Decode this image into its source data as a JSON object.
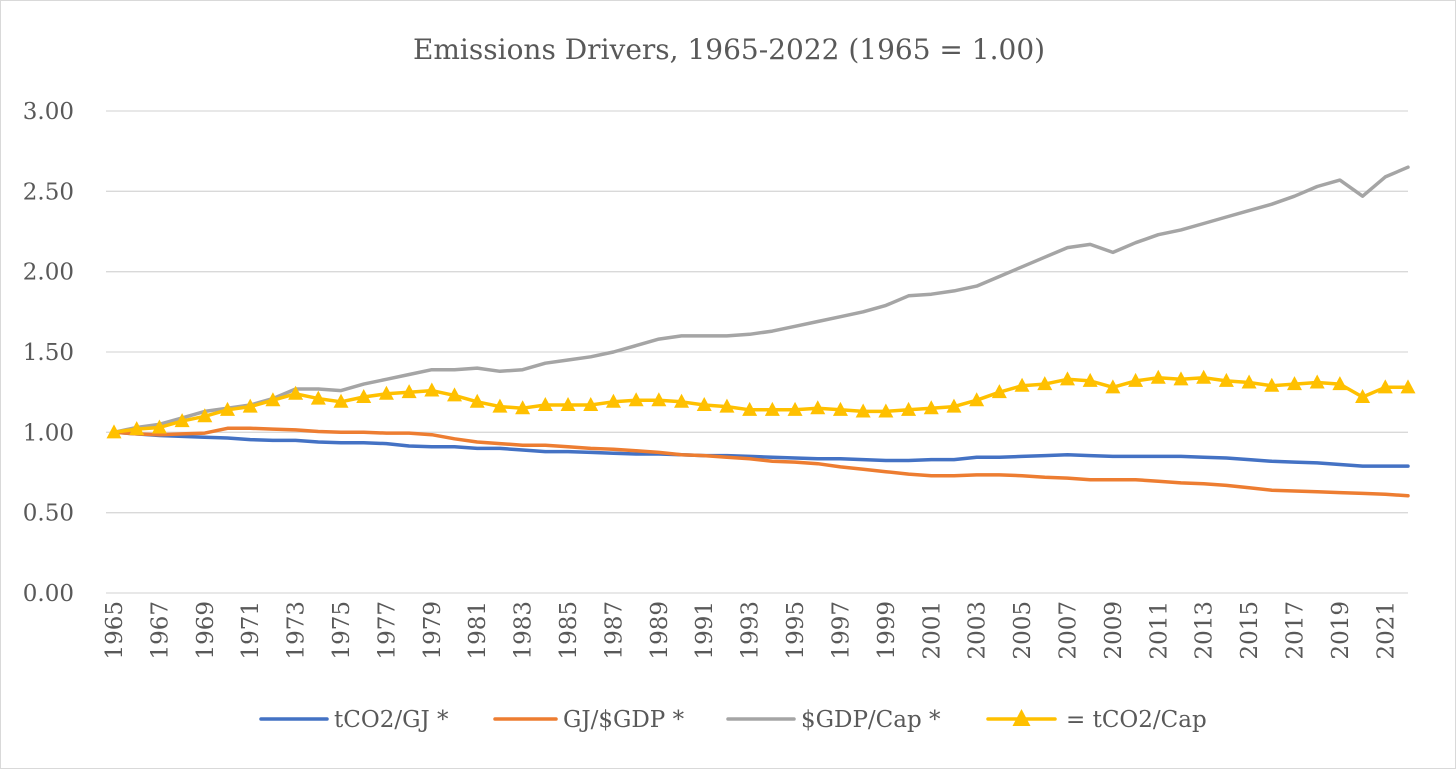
{
  "chart_data": {
    "type": "line",
    "title": "Emissions Drivers, 1965-2022 (1965 = 1.00)",
    "xlabel": "",
    "ylabel": "",
    "ylim": [
      0,
      3
    ],
    "y_ticks": [
      "0.00",
      "0.50",
      "1.00",
      "1.50",
      "2.00",
      "2.50",
      "3.00"
    ],
    "x_tick_labels": [
      "1965",
      "1967",
      "1969",
      "1971",
      "1973",
      "1975",
      "1977",
      "1979",
      "1981",
      "1983",
      "1985",
      "1987",
      "1989",
      "1991",
      "1993",
      "1995",
      "1997",
      "1999",
      "2001",
      "2003",
      "2005",
      "2007",
      "2009",
      "2011",
      "2013",
      "2015",
      "2017",
      "2019",
      "2021"
    ],
    "grid": "horizontal",
    "legend_position": "bottom",
    "x": [
      1965,
      1966,
      1967,
      1968,
      1969,
      1970,
      1971,
      1972,
      1973,
      1974,
      1975,
      1976,
      1977,
      1978,
      1979,
      1980,
      1981,
      1982,
      1983,
      1984,
      1985,
      1986,
      1987,
      1988,
      1989,
      1990,
      1991,
      1992,
      1993,
      1994,
      1995,
      1996,
      1997,
      1998,
      1999,
      2000,
      2001,
      2002,
      2003,
      2004,
      2005,
      2006,
      2007,
      2008,
      2009,
      2010,
      2011,
      2012,
      2013,
      2014,
      2015,
      2016,
      2017,
      2018,
      2019,
      2020,
      2021,
      2022
    ],
    "series": [
      {
        "name": "tCO2/GJ *",
        "color": "#4472C4",
        "marker": "none",
        "values": [
          1.0,
          0.99,
          0.98,
          0.975,
          0.97,
          0.965,
          0.955,
          0.95,
          0.95,
          0.94,
          0.935,
          0.935,
          0.93,
          0.915,
          0.91,
          0.91,
          0.9,
          0.9,
          0.89,
          0.88,
          0.88,
          0.875,
          0.87,
          0.865,
          0.865,
          0.86,
          0.855,
          0.855,
          0.85,
          0.845,
          0.84,
          0.835,
          0.835,
          0.83,
          0.825,
          0.825,
          0.83,
          0.83,
          0.845,
          0.845,
          0.85,
          0.855,
          0.86,
          0.855,
          0.85,
          0.85,
          0.85,
          0.85,
          0.845,
          0.84,
          0.83,
          0.82,
          0.815,
          0.81,
          0.8,
          0.79,
          0.79,
          0.79
        ]
      },
      {
        "name": "GJ/$GDP *",
        "color": "#ED7D31",
        "marker": "none",
        "values": [
          1.0,
          0.99,
          0.985,
          0.99,
          0.995,
          1.025,
          1.025,
          1.02,
          1.015,
          1.005,
          1.0,
          1.0,
          0.995,
          0.995,
          0.985,
          0.96,
          0.94,
          0.93,
          0.92,
          0.92,
          0.91,
          0.9,
          0.895,
          0.885,
          0.875,
          0.86,
          0.855,
          0.845,
          0.835,
          0.82,
          0.815,
          0.805,
          0.785,
          0.77,
          0.755,
          0.74,
          0.73,
          0.73,
          0.735,
          0.735,
          0.73,
          0.72,
          0.715,
          0.705,
          0.705,
          0.705,
          0.695,
          0.685,
          0.68,
          0.67,
          0.655,
          0.64,
          0.635,
          0.63,
          0.625,
          0.62,
          0.615,
          0.605
        ]
      },
      {
        "name": "$GDP/Cap *",
        "color": "#A5A5A5",
        "marker": "none",
        "values": [
          1.0,
          1.03,
          1.05,
          1.09,
          1.13,
          1.15,
          1.17,
          1.21,
          1.27,
          1.27,
          1.26,
          1.3,
          1.33,
          1.36,
          1.39,
          1.39,
          1.4,
          1.38,
          1.39,
          1.43,
          1.45,
          1.47,
          1.5,
          1.54,
          1.58,
          1.6,
          1.6,
          1.6,
          1.61,
          1.63,
          1.66,
          1.69,
          1.72,
          1.75,
          1.79,
          1.85,
          1.86,
          1.88,
          1.91,
          1.97,
          2.03,
          2.09,
          2.15,
          2.17,
          2.12,
          2.18,
          2.23,
          2.26,
          2.3,
          2.34,
          2.38,
          2.42,
          2.47,
          2.53,
          2.57,
          2.47,
          2.59,
          2.65
        ]
      },
      {
        "name": "= tCO2/Cap",
        "color": "#FFC000",
        "marker": "triangle",
        "values": [
          1.0,
          1.02,
          1.03,
          1.07,
          1.1,
          1.14,
          1.16,
          1.2,
          1.24,
          1.21,
          1.19,
          1.22,
          1.24,
          1.25,
          1.26,
          1.23,
          1.19,
          1.16,
          1.15,
          1.17,
          1.17,
          1.17,
          1.19,
          1.2,
          1.2,
          1.19,
          1.17,
          1.16,
          1.14,
          1.14,
          1.14,
          1.15,
          1.14,
          1.13,
          1.13,
          1.14,
          1.15,
          1.16,
          1.2,
          1.25,
          1.29,
          1.3,
          1.33,
          1.32,
          1.28,
          1.32,
          1.34,
          1.33,
          1.34,
          1.32,
          1.31,
          1.29,
          1.3,
          1.31,
          1.3,
          1.22,
          1.28,
          1.28
        ]
      }
    ]
  }
}
